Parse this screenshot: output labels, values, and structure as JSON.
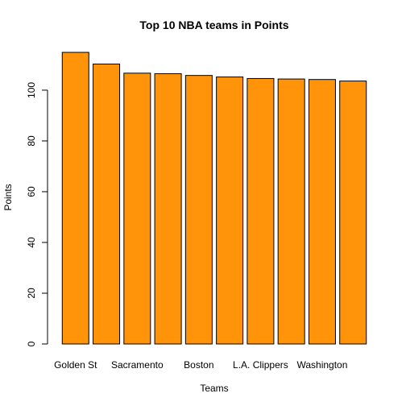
{
  "chart_data": {
    "type": "bar",
    "title": "Top 10 NBA teams in Points",
    "xlabel": "Teams",
    "ylabel": "Points",
    "categories": [
      "Golden St",
      "",
      "Sacramento",
      "",
      "Boston",
      "",
      "L.A. Clippers",
      "",
      "Washington",
      ""
    ],
    "values": [
      114.9,
      110.3,
      106.7,
      106.5,
      105.8,
      105.2,
      104.6,
      104.4,
      104.2,
      103.6
    ],
    "ylim": [
      0,
      116.8
    ],
    "yticks": [
      0,
      20,
      40,
      60,
      80,
      100
    ],
    "grid": false,
    "bar_color": "#FF940B",
    "bar_border": "#000000"
  }
}
